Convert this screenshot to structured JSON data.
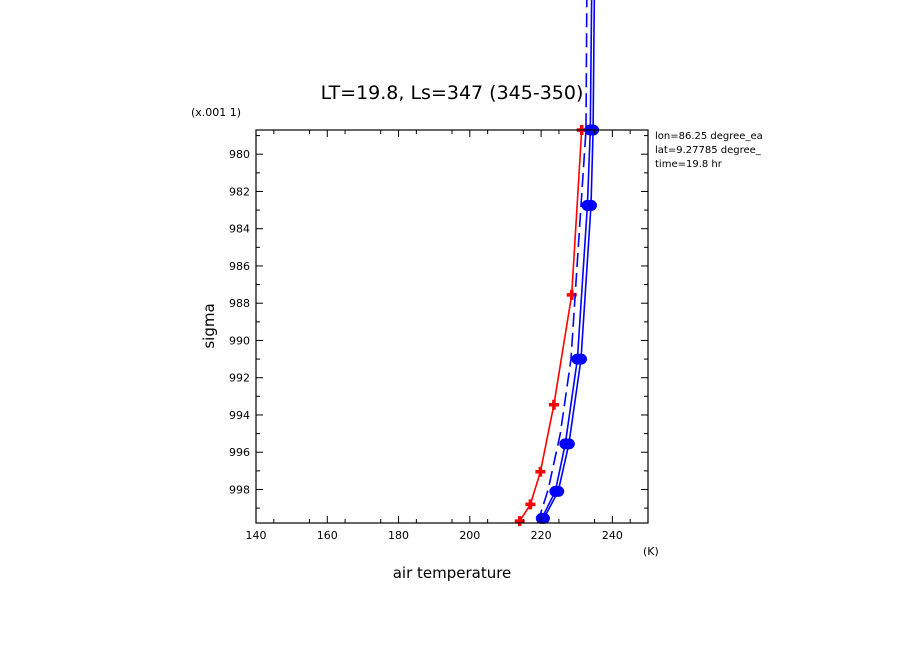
{
  "chart_data": {
    "type": "line",
    "title": "LT=19.8, Ls=347 (345-350)",
    "xlabel": "air temperature",
    "xunit": "(K)",
    "ylabel": "sigma",
    "yscale_label": "(x.001 1)",
    "xlim": [
      140,
      250
    ],
    "ylim": [
      999.8,
      978.7
    ],
    "y_scale_factor": 0.001,
    "x_ticks": [
      140,
      160,
      180,
      200,
      220,
      240
    ],
    "y_ticks": [
      980,
      982,
      984,
      986,
      988,
      990,
      992,
      994,
      996,
      998
    ],
    "grid": false,
    "annotations": [
      "lon=86.25 degree_ea",
      "lat=9.27785 degree_",
      "time=19.8 hr"
    ],
    "series": [
      {
        "color": "#ff0000",
        "marker": "plus",
        "style": "solid",
        "x": [
          214.0,
          217.0,
          219.8,
          223.6,
          228.6,
          231.4
        ],
        "y": [
          999.7,
          998.8,
          997.05,
          993.45,
          987.55,
          978.7
        ]
      },
      {
        "color": "#0000ff",
        "marker": "dot",
        "style": "solid",
        "x": [
          220.8,
          224.8,
          227.8,
          231.2,
          234.0,
          234.6,
          235.5
        ],
        "y": [
          999.55,
          998.1,
          995.55,
          991.0,
          982.75,
          978.7,
          960.0
        ]
      },
      {
        "color": "#0000ff",
        "marker": "dot",
        "style": "solid",
        "x": [
          220.2,
          224.0,
          226.8,
          230.2,
          233.0,
          233.8,
          234.8
        ],
        "y": [
          999.55,
          998.1,
          995.55,
          991.0,
          982.75,
          978.7,
          960.0
        ]
      },
      {
        "color": "#0000ff",
        "marker": "none",
        "style": "dashed",
        "x": [
          219.0,
          222.0,
          225.4,
          228.4,
          231.2,
          232.6,
          233.2
        ],
        "y": [
          999.8,
          998.0,
          995.0,
          991.0,
          982.75,
          978.7,
          960.0
        ]
      }
    ]
  }
}
